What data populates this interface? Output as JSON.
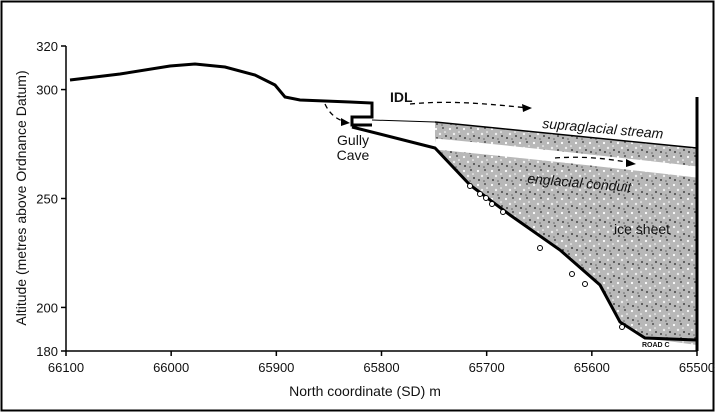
{
  "axes": {
    "x": {
      "label": "North coordinate (SD) m",
      "lim": [
        66100,
        65500
      ],
      "ticks": [
        66100,
        66000,
        65900,
        65800,
        65700,
        65600,
        65500
      ]
    },
    "y": {
      "label": "Altitude (metres above Ordnance Datum)",
      "lim": [
        180,
        320
      ],
      "ticks": [
        180,
        200,
        250,
        300,
        320
      ]
    }
  },
  "annotations": {
    "idl": "IDL",
    "gully": "Gully",
    "cave": "Cave",
    "supraglacial": "supraglacial stream",
    "englacial": "englacial conduit",
    "ice_sheet": "ice sheet",
    "road": "ROAD C"
  }
}
